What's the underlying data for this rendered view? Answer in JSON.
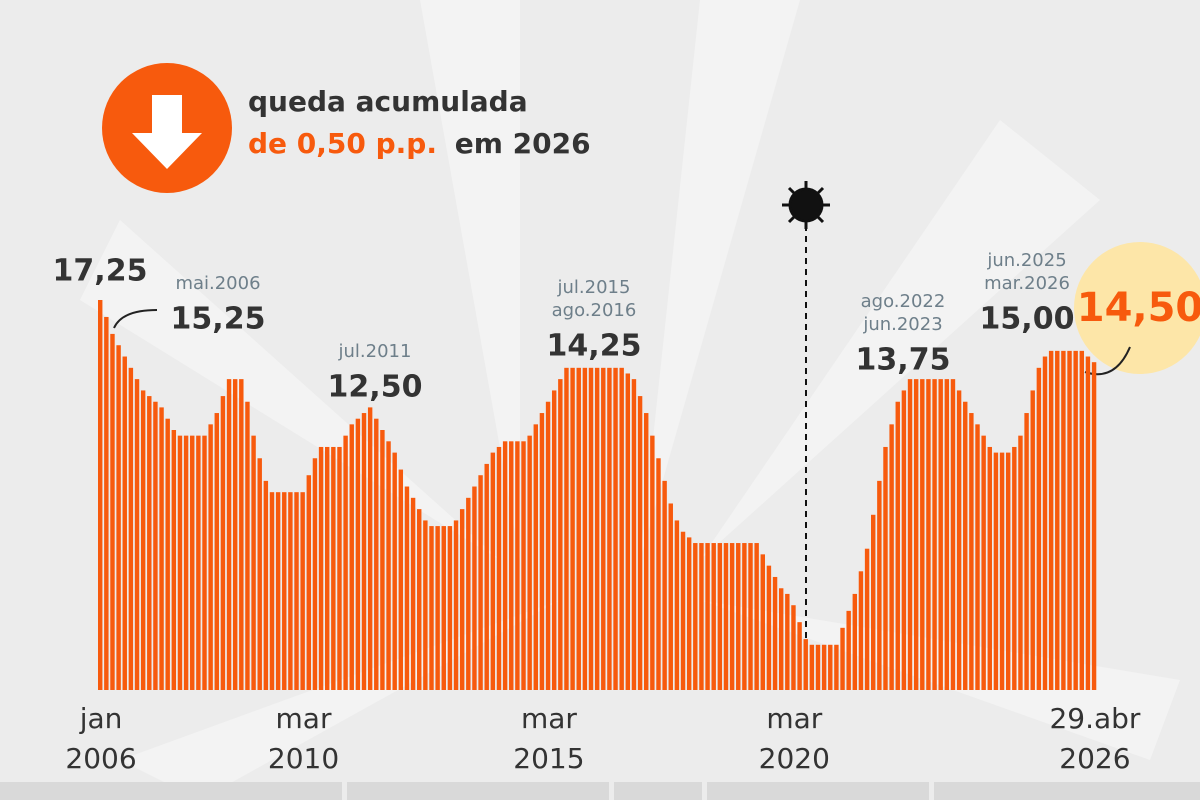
{
  "header": {
    "line1": "queda acumulada",
    "highlight": "de 0,50 p.p.",
    "rest": "em 2026"
  },
  "chart_data": {
    "type": "bar",
    "color": "#f75a0d",
    "ylim": [
      0,
      17.25
    ],
    "values": [
      17.25,
      16.5,
      15.75,
      15.25,
      14.75,
      14.25,
      13.75,
      13.25,
      13.0,
      12.75,
      12.5,
      12.0,
      11.5,
      11.25,
      11.25,
      11.25,
      11.25,
      11.25,
      11.75,
      12.25,
      13.0,
      13.75,
      13.75,
      13.75,
      12.75,
      11.25,
      10.25,
      9.25,
      8.75,
      8.75,
      8.75,
      8.75,
      8.75,
      8.75,
      9.5,
      10.25,
      10.75,
      10.75,
      10.75,
      10.75,
      11.25,
      11.75,
      12.0,
      12.25,
      12.5,
      12.0,
      11.5,
      11.0,
      10.5,
      9.75,
      9.0,
      8.5,
      8.0,
      7.5,
      7.25,
      7.25,
      7.25,
      7.25,
      7.5,
      8.0,
      8.5,
      9.0,
      9.5,
      10.0,
      10.5,
      10.75,
      11.0,
      11.0,
      11.0,
      11.0,
      11.25,
      11.75,
      12.25,
      12.75,
      13.25,
      13.75,
      14.25,
      14.25,
      14.25,
      14.25,
      14.25,
      14.25,
      14.25,
      14.25,
      14.25,
      14.25,
      14.0,
      13.75,
      13.0,
      12.25,
      11.25,
      10.25,
      9.25,
      8.25,
      7.5,
      7.0,
      6.75,
      6.5,
      6.5,
      6.5,
      6.5,
      6.5,
      6.5,
      6.5,
      6.5,
      6.5,
      6.5,
      6.5,
      6.0,
      5.5,
      5.0,
      4.5,
      4.25,
      3.75,
      3.0,
      2.25,
      2.0,
      2.0,
      2.0,
      2.0,
      2.0,
      2.75,
      3.5,
      4.25,
      5.25,
      6.25,
      7.75,
      9.25,
      10.75,
      11.75,
      12.75,
      13.25,
      13.75,
      13.75,
      13.75,
      13.75,
      13.75,
      13.75,
      13.75,
      13.75,
      13.25,
      12.75,
      12.25,
      11.75,
      11.25,
      10.75,
      10.5,
      10.5,
      10.5,
      10.75,
      11.25,
      12.25,
      13.25,
      14.25,
      14.75,
      15.0,
      15.0,
      15.0,
      15.0,
      15.0,
      15.0,
      14.75,
      14.5
    ],
    "x_labels": [
      {
        "index": 0,
        "month": "jan",
        "year": "2006"
      },
      {
        "index": 33,
        "month": "mar",
        "year": "2010"
      },
      {
        "index": 73,
        "month": "mar",
        "year": "2015"
      },
      {
        "index": 113,
        "month": "mar",
        "year": "2020"
      },
      {
        "index": 162,
        "month": "29.abr",
        "year": "2026"
      }
    ],
    "annotations": [
      {
        "dates": [],
        "label": "17,25"
      },
      {
        "dates": [
          "mai.2006"
        ],
        "label": "15,25"
      },
      {
        "dates": [
          "jul.2011"
        ],
        "label": "12,50"
      },
      {
        "dates": [
          "jul.2015",
          "ago.2016"
        ],
        "label": "14,25"
      },
      {
        "dates": [
          "ago.2022",
          "jun.2023"
        ],
        "label": "13,75"
      },
      {
        "dates": [
          "jun.2025",
          "mar.2026"
        ],
        "label": "15,00"
      },
      {
        "dates": [],
        "label": "14,50"
      }
    ]
  }
}
